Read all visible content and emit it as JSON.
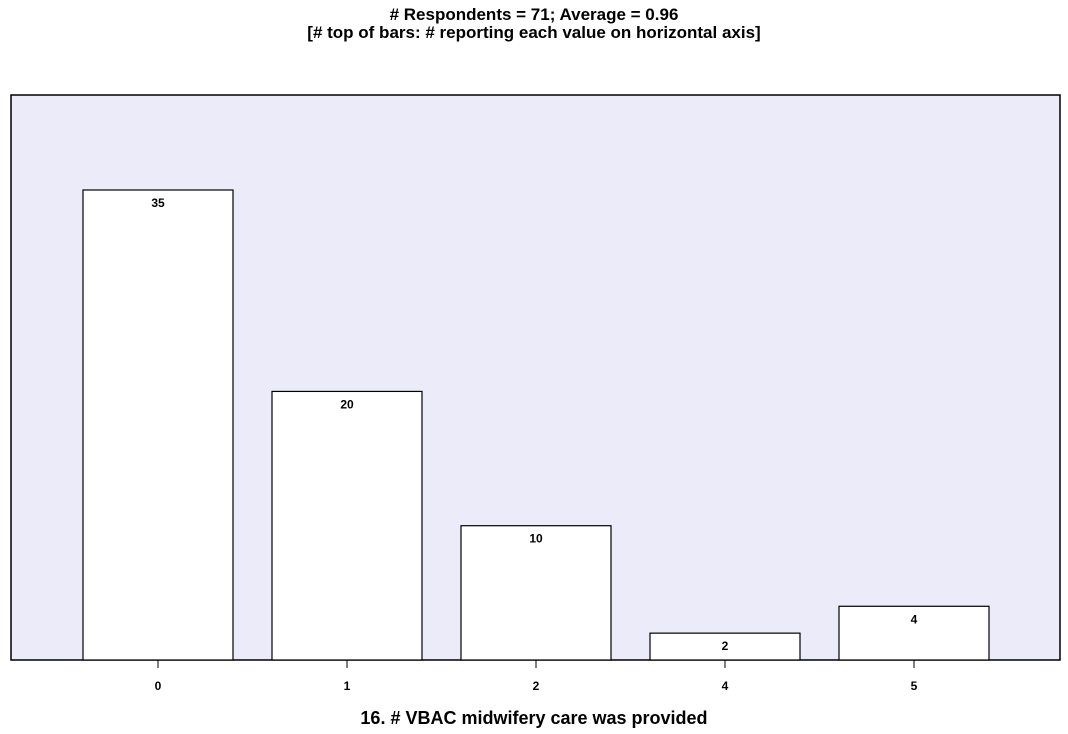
{
  "chart_data": {
    "type": "bar",
    "title": "# Respondents = 71; Average = 0.96",
    "subtitle": "[# top of bars: # reporting each value on horizontal axis]",
    "categories": [
      "0",
      "1",
      "2",
      "4",
      "5"
    ],
    "values": [
      35,
      20,
      10,
      2,
      4
    ],
    "data_labels": [
      "35",
      "20",
      "10",
      "2",
      "4"
    ],
    "xlabel": "16. # VBAC midwifery care was provided",
    "ylabel": "",
    "ylim": [
      0,
      42
    ],
    "grid": false,
    "legend": "none",
    "colors": {
      "plot_background": "#ebebfa",
      "bar_fill": "#ffffff",
      "bar_stroke": "#000000"
    }
  }
}
